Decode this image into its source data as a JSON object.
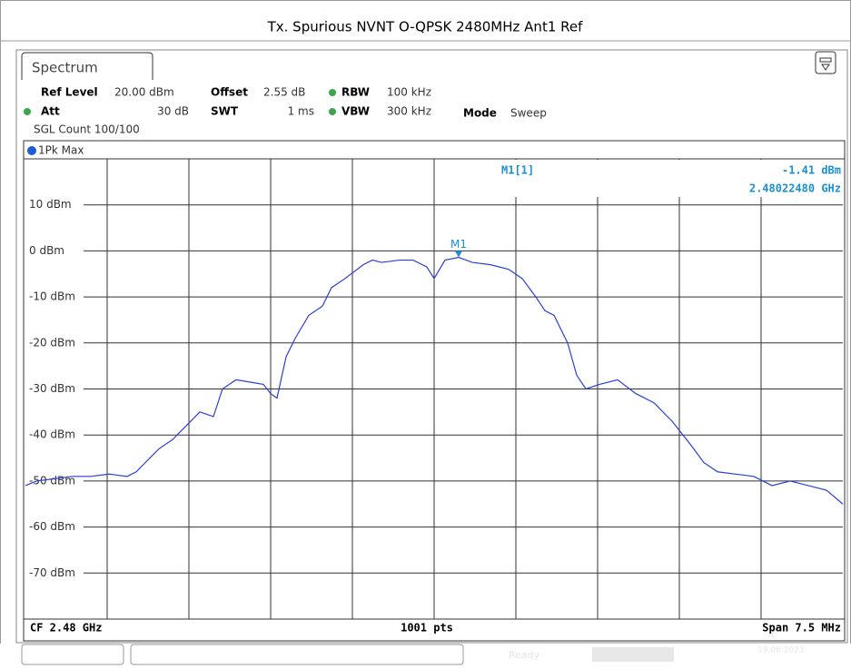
{
  "header": {
    "title": "Tx. Spurious NVNT O-QPSK 2480MHz Ant1 Ref"
  },
  "tab": "Spectrum",
  "settings": {
    "ref_level_label": "Ref Level",
    "ref_level": "20.00 dBm",
    "offset_label": "Offset",
    "offset": "2.55 dB",
    "rbw_label": "RBW",
    "rbw": "100 kHz",
    "att_label": "Att",
    "att": "30 dB",
    "swt_label": "SWT",
    "swt": "1 ms",
    "vbw_label": "VBW",
    "vbw": "300 kHz",
    "mode_label": "Mode",
    "mode": "Sweep",
    "count": "SGL Count 100/100"
  },
  "footer": {
    "cf": "CF 2.48 GHz",
    "points": "1001 pts",
    "span": "Span 7.5 MHz"
  },
  "status": {
    "state": "Ready",
    "date": "19.06.2023"
  },
  "chart_data": {
    "type": "line",
    "trace_label": "1Pk Max",
    "color": "#2a3fd8",
    "xlim": [
      2.47625,
      2.48375
    ],
    "ylim": [
      -80,
      20
    ],
    "yticks": [
      {
        "value": 10,
        "label": "10 dBm"
      },
      {
        "value": 0,
        "label": "0 dBm"
      },
      {
        "value": -10,
        "label": "-10 dBm"
      },
      {
        "value": -20,
        "label": "-20 dBm"
      },
      {
        "value": -30,
        "label": "-30 dBm"
      },
      {
        "value": -40,
        "label": "-40 dBm"
      },
      {
        "value": -50,
        "label": "-50 dBm"
      },
      {
        "value": -60,
        "label": "-60 dBm"
      },
      {
        "value": -70,
        "label": "-70 dBm"
      }
    ],
    "grid": true,
    "x": [
      2.47625,
      2.47635,
      2.476517,
      2.476683,
      2.47685,
      2.477017,
      2.477183,
      2.477267,
      2.47735,
      2.477475,
      2.4776,
      2.477725,
      2.47785,
      2.477975,
      2.478058,
      2.478183,
      2.478308,
      2.478433,
      2.4785,
      2.478558,
      2.478642,
      2.478725,
      2.47885,
      2.478975,
      2.479058,
      2.479183,
      2.47935,
      2.479433,
      2.479517,
      2.479683,
      2.479808,
      2.479933,
      2.48,
      2.4801,
      2.4802248,
      2.48035,
      2.480517,
      2.480683,
      2.480808,
      2.480933,
      2.481017,
      2.4811,
      2.481225,
      2.481308,
      2.481392,
      2.481517,
      2.481683,
      2.48185,
      2.482017,
      2.482183,
      2.48235,
      2.482475,
      2.4826,
      2.482767,
      2.482933,
      2.4831,
      2.483267,
      2.483433,
      2.4836,
      2.48375
    ],
    "values": [
      -51,
      -50,
      -49.5,
      -49,
      -49,
      -48.5,
      -49,
      -48,
      -46,
      -43,
      -41,
      -38,
      -35,
      -36,
      -30,
      -28,
      -28.5,
      -29,
      -31,
      -32,
      -23,
      -19,
      -14,
      -12,
      -8,
      -6,
      -3,
      -2,
      -2.5,
      -2,
      -2,
      -3.5,
      -6,
      -2,
      -1.41,
      -2.5,
      -3,
      -4,
      -6,
      -10,
      -13,
      -14,
      -20,
      -27,
      -30,
      -29,
      -28,
      -31,
      -33,
      -37,
      -42,
      -46,
      -48,
      -48.5,
      -49,
      -51,
      -50,
      -51,
      -52,
      -55
    ],
    "marker": {
      "name": "M1",
      "label": "M1[1]",
      "x": 2.4802248,
      "y": -1.41,
      "y_label": "-1.41 dBm",
      "x_label": "2.48022480 GHz"
    }
  }
}
